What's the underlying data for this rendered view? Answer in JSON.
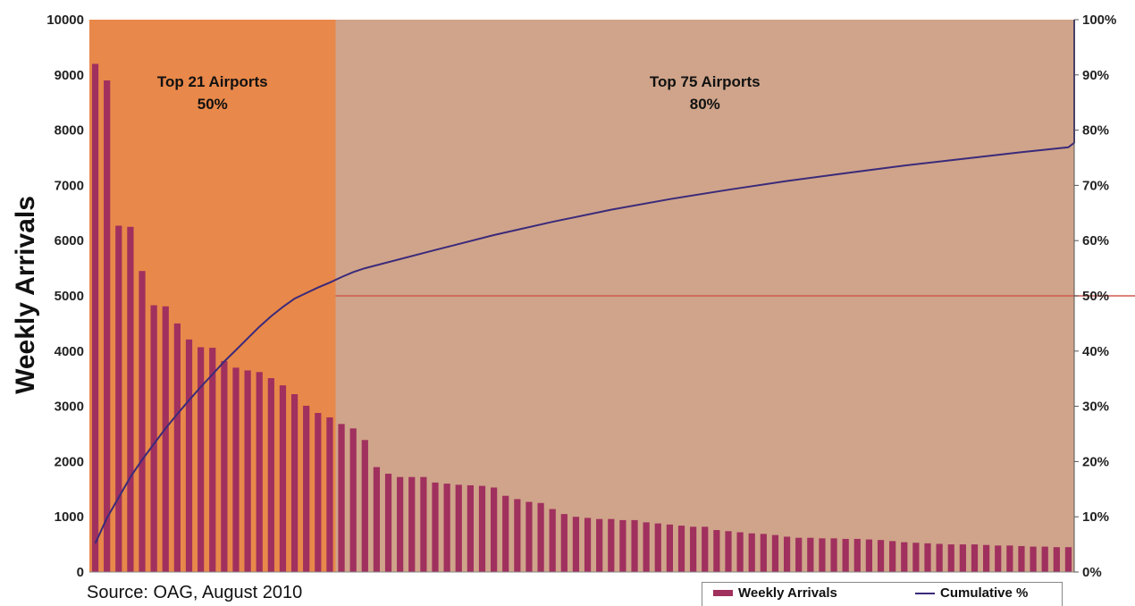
{
  "chart_data": {
    "type": "bar",
    "ylabel": "Weekly Arrivals",
    "ylim": [
      0,
      10000
    ],
    "y_ticks": [
      "0",
      "1000",
      "2000",
      "3000",
      "4000",
      "5000",
      "6000",
      "7000",
      "8000",
      "9000",
      "10000"
    ],
    "y2lim": [
      0,
      100
    ],
    "y2_ticks": [
      "0%",
      "10%",
      "20%",
      "30%",
      "40%",
      "50%",
      "60%",
      "70%",
      "80%",
      "90%",
      "100%"
    ],
    "regions": [
      {
        "label_line1": "Top 21 Airports",
        "label_line2": "50%",
        "start": 1,
        "end": 21,
        "color": "#e8884a"
      },
      {
        "label_line1": "Top 75 Airports",
        "label_line2": "80%",
        "start": 22,
        "end": 75,
        "color": "#cfa48a"
      }
    ],
    "series": [
      {
        "name": "Weekly Arrivals",
        "kind": "bar",
        "color": "#a0305e",
        "values": [
          9200,
          8900,
          6270,
          6250,
          5450,
          4830,
          4810,
          4500,
          4210,
          4070,
          4060,
          3820,
          3700,
          3650,
          3620,
          3510,
          3380,
          3220,
          3010,
          2880,
          2800,
          2680,
          2600,
          2390,
          1900,
          1780,
          1720,
          1720,
          1720,
          1620,
          1600,
          1580,
          1570,
          1560,
          1530,
          1380,
          1320,
          1270,
          1250,
          1140,
          1050,
          1000,
          980,
          960,
          960,
          940,
          940,
          900,
          880,
          860,
          840,
          820,
          820,
          760,
          740,
          720,
          700,
          690,
          670,
          640,
          620,
          620,
          610,
          610,
          600,
          600,
          590,
          580,
          560,
          540,
          530,
          520,
          510,
          500,
          500,
          500,
          490,
          480,
          480,
          470,
          460,
          460,
          450,
          450
        ]
      },
      {
        "name": "Cumulative %",
        "kind": "line",
        "axis": "right",
        "color": "#3b2a7a",
        "points": [
          [
            1,
            5.2
          ],
          [
            2,
            9.8
          ],
          [
            3,
            13.5
          ],
          [
            4,
            17.2
          ],
          [
            5,
            20.3
          ],
          [
            6,
            23.2
          ],
          [
            7,
            26.0
          ],
          [
            8,
            28.6
          ],
          [
            9,
            31.1
          ],
          [
            10,
            33.5
          ],
          [
            11,
            35.8
          ],
          [
            12,
            38.1
          ],
          [
            13,
            40.2
          ],
          [
            14,
            42.3
          ],
          [
            15,
            44.4
          ],
          [
            16,
            46.3
          ],
          [
            17,
            48.0
          ],
          [
            18,
            49.5
          ],
          [
            19,
            50.5
          ],
          [
            20,
            51.5
          ],
          [
            21,
            52.4
          ],
          [
            22,
            53.4
          ],
          [
            23,
            54.3
          ],
          [
            24,
            55.0
          ],
          [
            30,
            58.3
          ],
          [
            35,
            61.0
          ],
          [
            40,
            63.4
          ],
          [
            45,
            65.6
          ],
          [
            50,
            67.5
          ],
          [
            55,
            69.2
          ],
          [
            60,
            70.8
          ],
          [
            65,
            72.2
          ],
          [
            70,
            73.6
          ],
          [
            75,
            74.8
          ],
          [
            80,
            76.0
          ],
          [
            84,
            76.9
          ],
          [
            88,
            77.7
          ],
          [
            92,
            78.4
          ],
          [
            97,
            79.2
          ],
          [
            100,
            79.6
          ],
          [
            101,
            80.0
          ],
          [
            102,
            100.0
          ]
        ]
      }
    ],
    "reference_line": {
      "value": 50,
      "axis": "right",
      "from": 21,
      "to": 101,
      "color": "#d05a50",
      "arrow": true
    },
    "legend_position": "bottom-right",
    "grid": false
  },
  "source_text": "Source: OAG, August 2010",
  "legend": {
    "bar_label": "Weekly Arrivals",
    "line_label": "Cumulative %"
  }
}
